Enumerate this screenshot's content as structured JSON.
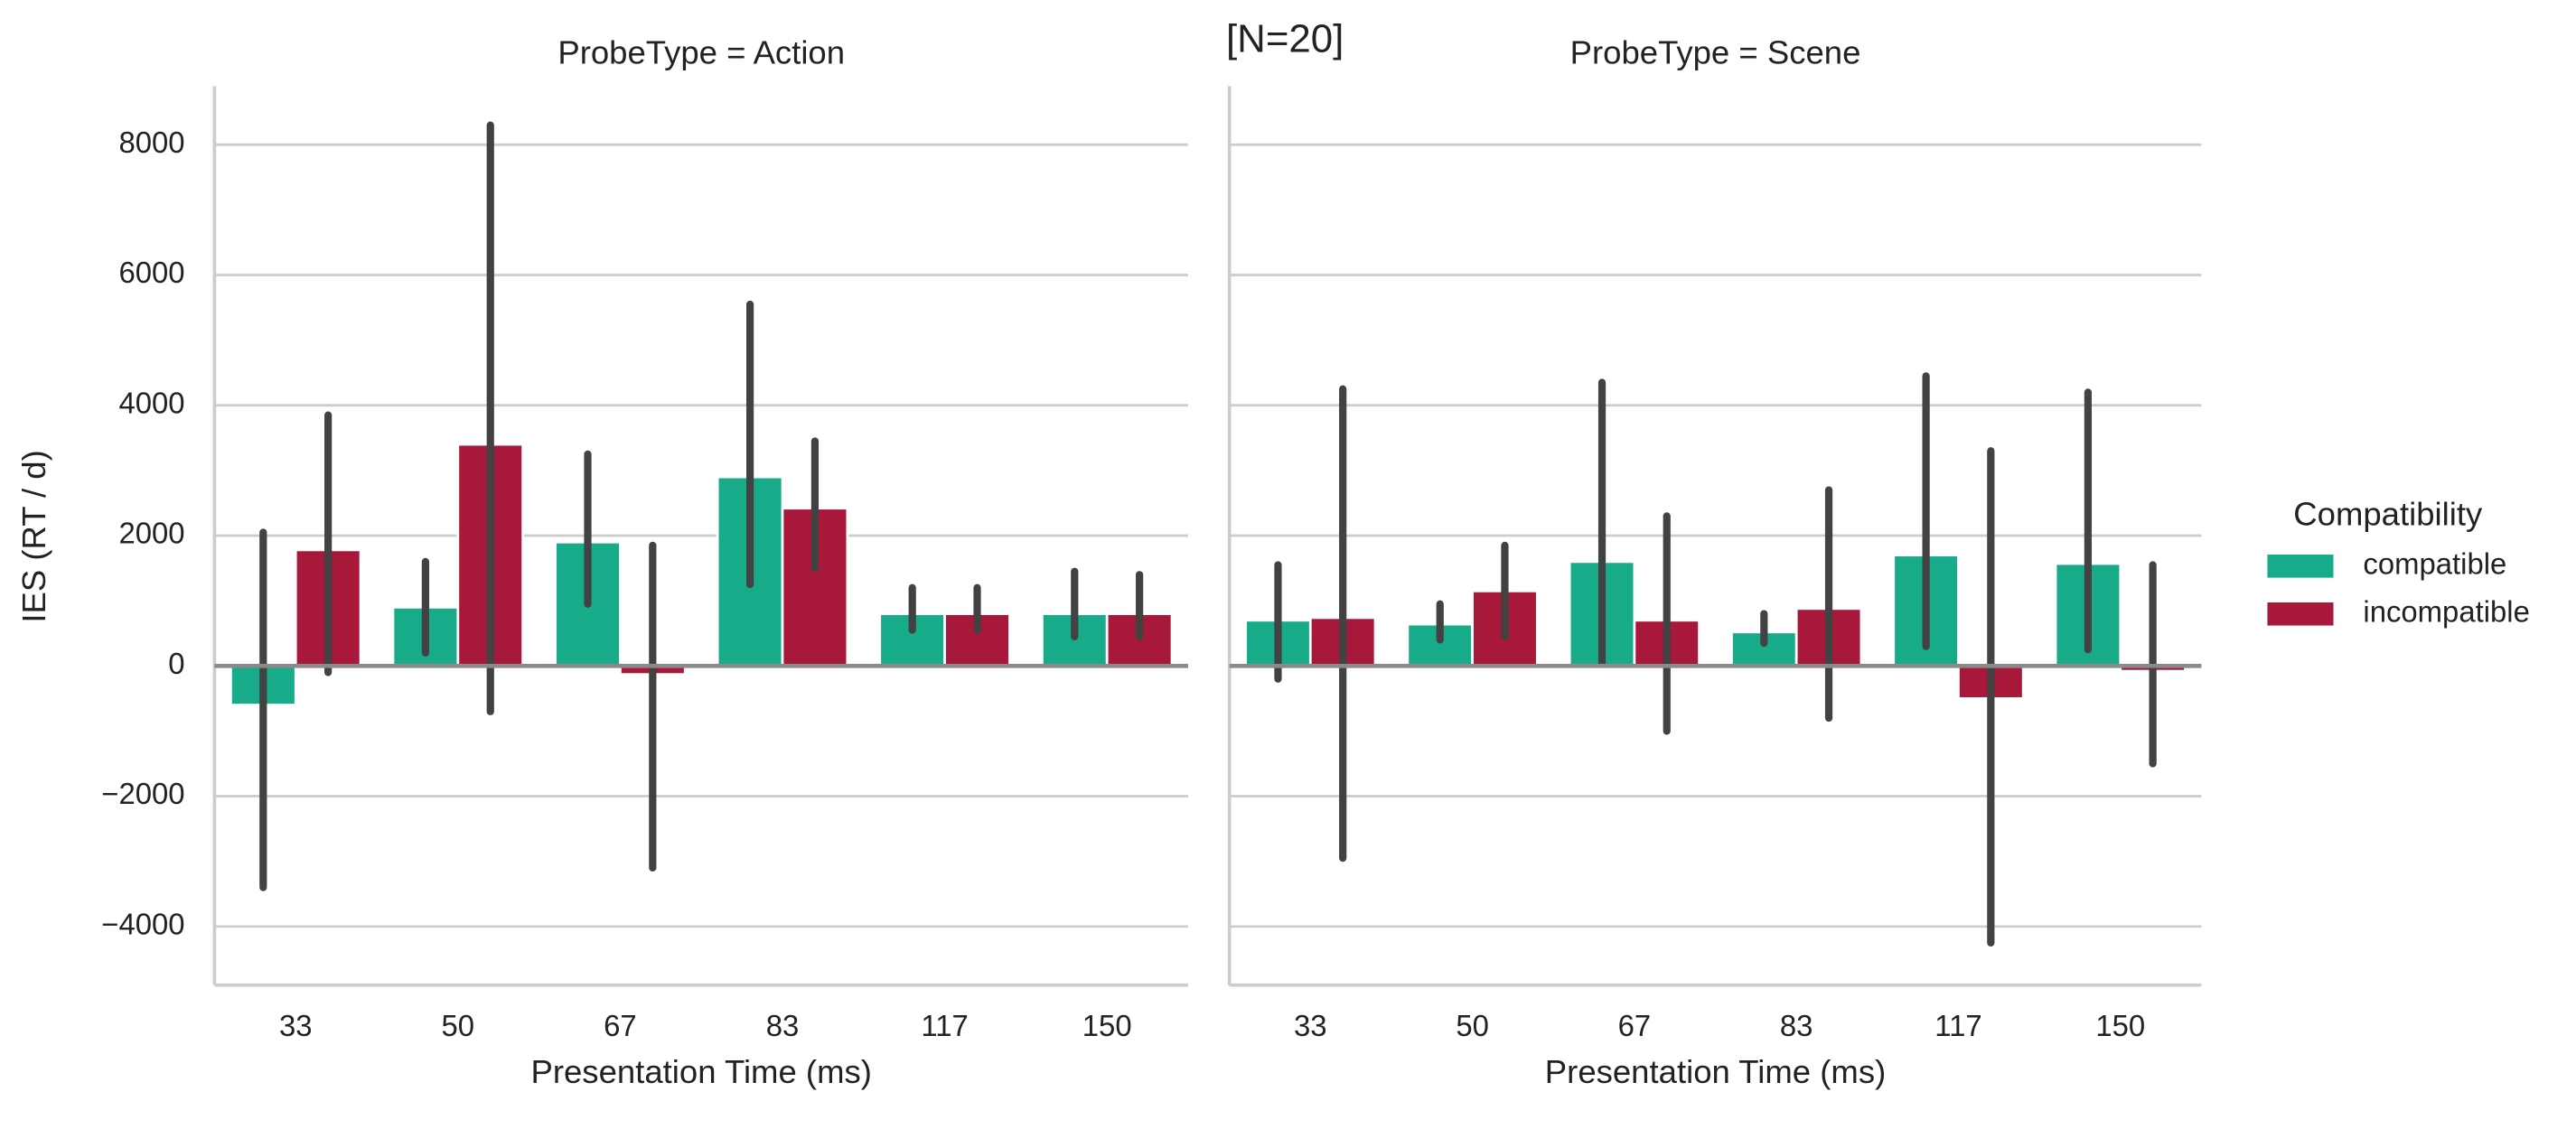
{
  "chart_data": [
    {
      "type": "bar",
      "title": "ProbeType = Action",
      "x_label": "Presentation Time (ms)",
      "y_label": "IES (RT / d)",
      "categories": [
        "33",
        "50",
        "67",
        "83",
        "117",
        "150"
      ],
      "series": [
        {
          "name": "compatible",
          "color": "#17ab8a",
          "values": [
            -600,
            900,
            1900,
            2900,
            800,
            800
          ],
          "error_low": [
            -3400,
            200,
            950,
            1250,
            550,
            450
          ],
          "error_high": [
            2050,
            1600,
            3250,
            5550,
            1200,
            1450
          ]
        },
        {
          "name": "incompatible",
          "color": "#a8183a",
          "values": [
            1780,
            3400,
            -130,
            2420,
            800,
            800
          ],
          "error_low": [
            -100,
            -700,
            -3100,
            1500,
            550,
            450
          ],
          "error_high": [
            3850,
            8300,
            1850,
            3450,
            1200,
            1400
          ]
        }
      ],
      "ylim": [
        -4900,
        8900
      ],
      "yticks": [
        {
          "value": -4000,
          "label": "−4000"
        },
        {
          "value": -2000,
          "label": "−2000"
        },
        0,
        2000,
        4000,
        6000,
        8000
      ],
      "grid": true
    },
    {
      "type": "bar",
      "title": "ProbeType = Scene",
      "x_label": "Presentation Time (ms)",
      "annotation": "[N=20]",
      "legend_title": "Compatibility",
      "legend": "right",
      "categories": [
        "33",
        "50",
        "67",
        "83",
        "117",
        "150"
      ],
      "series": [
        {
          "name": "compatible",
          "color": "#17ab8a",
          "values": [
            700,
            640,
            1600,
            520,
            1700,
            1570
          ],
          "error_low": [
            -200,
            400,
            50,
            350,
            300,
            250
          ],
          "error_high": [
            1550,
            950,
            4350,
            800,
            4450,
            4200
          ]
        },
        {
          "name": "incompatible",
          "color": "#a8183a",
          "values": [
            740,
            1150,
            700,
            880,
            -500,
            -80
          ],
          "error_low": [
            -2950,
            450,
            -1000,
            -800,
            -4250,
            -1500
          ],
          "error_high": [
            4250,
            1850,
            2300,
            2700,
            3300,
            1550
          ]
        }
      ],
      "ylim": [
        -4900,
        8900
      ],
      "grid": true
    }
  ]
}
